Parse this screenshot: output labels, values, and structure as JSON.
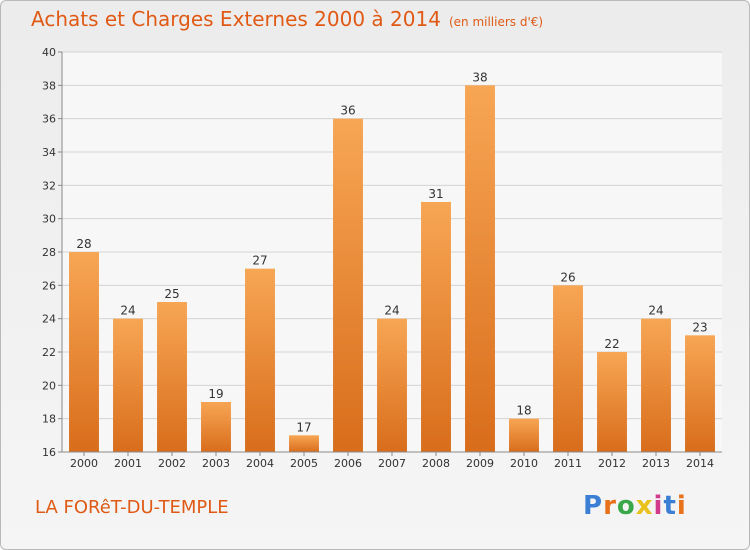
{
  "title": "Achats et Charges Externes 2000 à 2014",
  "subtitle": "(en milliers d'€)",
  "commune": "LA FORêT-DU-TEMPLE",
  "logo": {
    "text": "Proxiti",
    "colors": [
      "#3b7fd4",
      "#e8721c",
      "#3aa84a",
      "#e8c21c",
      "#d23a8c",
      "#3b7fd4",
      "#e8721c"
    ]
  },
  "chart_data": {
    "type": "bar",
    "categories": [
      "2000",
      "2001",
      "2002",
      "2003",
      "2004",
      "2005",
      "2006",
      "2007",
      "2008",
      "2009",
      "2010",
      "2011",
      "2012",
      "2013",
      "2014"
    ],
    "values": [
      28,
      24,
      25,
      19,
      27,
      17,
      36,
      24,
      31,
      38,
      18,
      26,
      22,
      24,
      23
    ],
    "data_labels": [
      "28",
      "24",
      "25",
      "19",
      "27",
      "17",
      "36",
      "24",
      "31",
      "38",
      "18",
      "26",
      "22",
      "24",
      "23"
    ],
    "ylim": [
      16,
      40
    ],
    "yticks": [
      "16",
      "18",
      "20",
      "22",
      "24",
      "26",
      "28",
      "30",
      "32",
      "34",
      "36",
      "38",
      "40"
    ],
    "grid": true,
    "colors": {
      "bar_top": "#f7a654",
      "bar_bottom": "#d86d1c",
      "axis_text": "#333333",
      "grid": "#d4d4d4"
    }
  }
}
